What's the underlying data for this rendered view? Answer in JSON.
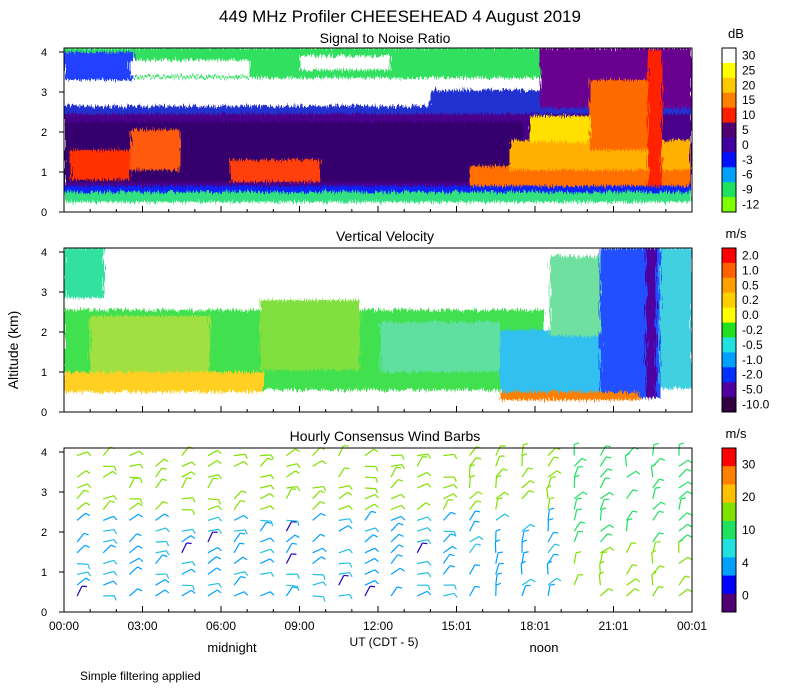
{
  "title": "449 MHz Profiler CHEESEHEAD  4 August 2019",
  "ylabel": "Altitude (km)",
  "xlabel": "UT  (CDT - 5)",
  "x_ticks": [
    "00:00",
    "03:00",
    "06:00",
    "09:00",
    "12:00",
    "15:01",
    "18:01",
    "21:01",
    "00:01"
  ],
  "local_labels": [
    "midnight",
    "noon"
  ],
  "footer": "Simple filtering applied",
  "chart_data": [
    {
      "type": "heatmap",
      "title": "Signal to Noise Ratio",
      "xlabel": "UT  (CDT - 5)",
      "ylabel": "Altitude (km)",
      "xlim": [
        0,
        24
      ],
      "ylim": [
        0,
        4.1
      ],
      "y_ticks": [
        "0",
        "1",
        "2",
        "3",
        "4"
      ],
      "colorbar": {
        "unit": "dB",
        "tick_labels": [
          "30",
          "25",
          "20",
          "15",
          "10",
          "5",
          "0",
          "-3",
          "-6",
          "-9",
          "-12"
        ],
        "colors": [
          "#ffffff",
          "#ffff00",
          "#ffc800",
          "#ff8000",
          "#ff2000",
          "#500070",
          "#4000a0",
          "#0010ff",
          "#00a0ff",
          "#20e060",
          "#80ff00"
        ]
      }
    },
    {
      "type": "heatmap",
      "title": "Vertical Velocity",
      "xlabel": "UT  (CDT - 5)",
      "ylabel": "Altitude (km)",
      "xlim": [
        0,
        24
      ],
      "ylim": [
        0,
        4.1
      ],
      "y_ticks": [
        "0",
        "1",
        "2",
        "3",
        "4"
      ],
      "colorbar": {
        "unit": "m/s",
        "tick_labels": [
          "2.0",
          "1.0",
          "0.5",
          "0.2",
          "0.0",
          "-0.2",
          "-0.5",
          "-1.0",
          "-2.0",
          "-5.0",
          "-10.0"
        ],
        "colors": [
          "#ff0000",
          "#ff6000",
          "#ffa000",
          "#ffd000",
          "#ffff00",
          "#20e020",
          "#20e0e0",
          "#00a0ff",
          "#0030ff",
          "#5000a0",
          "#300040"
        ]
      }
    },
    {
      "type": "scatter",
      "title": "Hourly Consensus Wind Barbs",
      "xlabel": "UT  (CDT - 5)",
      "ylabel": "Altitude (km)",
      "xlim": [
        0,
        24
      ],
      "ylim": [
        0,
        4.1
      ],
      "y_ticks": [
        "0",
        "1",
        "2",
        "3",
        "4"
      ],
      "colorbar": {
        "unit": "m/s",
        "tick_labels": [
          "30",
          "20",
          "10",
          "4",
          "0"
        ],
        "colors": [
          "#ff0000",
          "#ff8000",
          "#ffc000",
          "#80e000",
          "#20e060",
          "#20e0e0",
          "#00a0ff",
          "#0000ff",
          "#500070"
        ]
      }
    }
  ]
}
